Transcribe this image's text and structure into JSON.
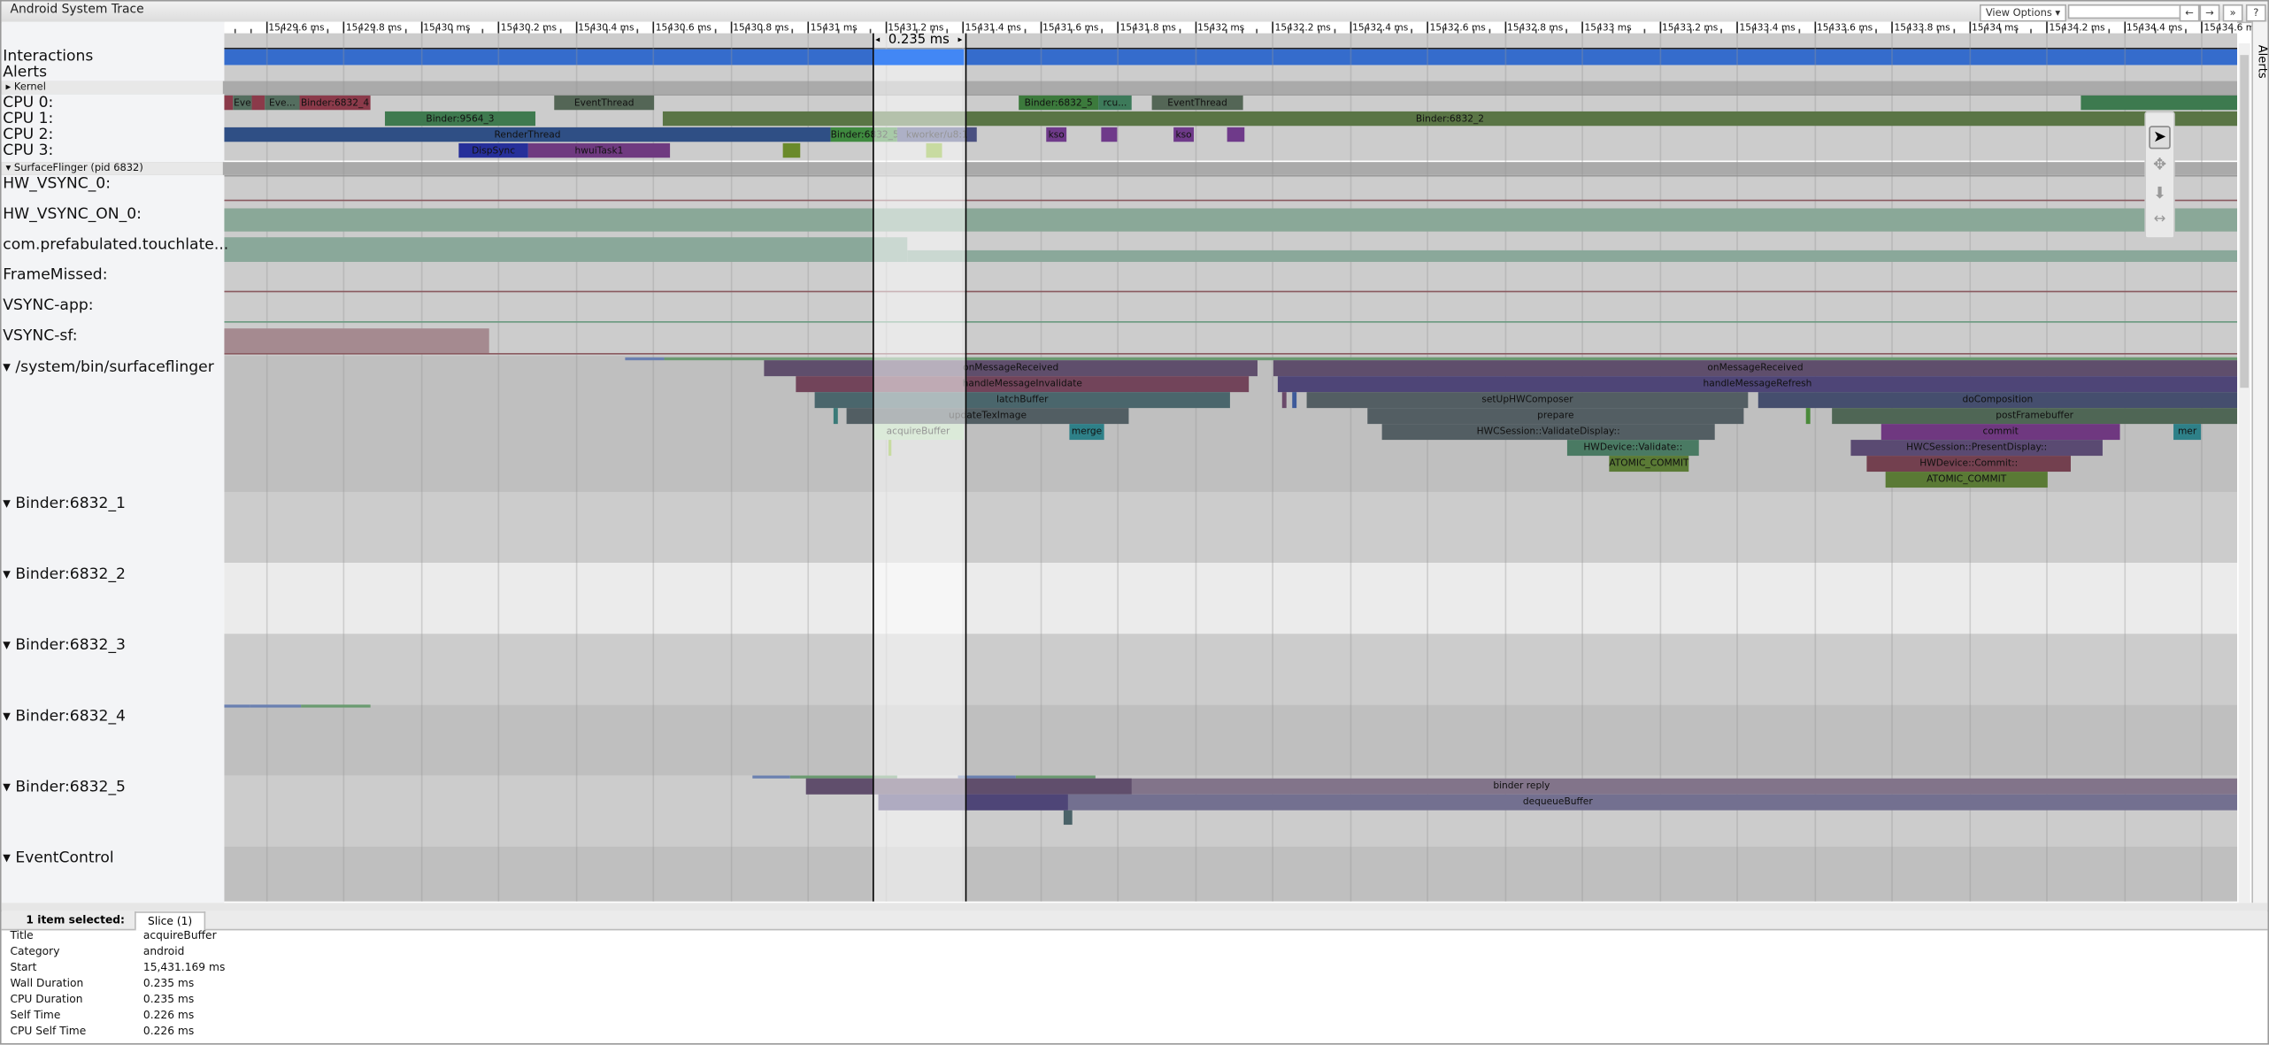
{
  "window": {
    "title": "Android System Trace"
  },
  "toolbar": {
    "view_options": "View Options ▾",
    "search_placeholder": "",
    "prev": "←",
    "next": "→",
    "more": "»",
    "help": "?"
  },
  "side_tab": "Alerts",
  "ruler": {
    "ticks": [
      "ms",
      "15429.6 ms",
      "15429.8 ms",
      "15430 ms",
      "15430.2 ms",
      "15430.4 ms",
      "15430.6 ms",
      "15430.8 ms",
      "15431 ms",
      "15431.2 ms",
      "15431.4 ms",
      "15431.6 ms",
      "15431.8 ms",
      "15432 ms",
      "15432.2 ms",
      "15432.4 ms",
      "15432.6 ms",
      "15432.8 ms",
      "15433 ms",
      "15433.2 ms",
      "15433.4 ms",
      "15433.6 ms",
      "15433.8 ms",
      "15434 ms",
      "15434.2 ms",
      "15434.4 ms",
      "15434.6 ms"
    ],
    "selection_duration": "0.235 ms"
  },
  "tracks": {
    "interactions": "Interactions",
    "alerts": "Alerts",
    "kernel": "▸ Kernel",
    "cpu": [
      "CPU 0:",
      "CPU 1:",
      "CPU 2:",
      "CPU 3:"
    ],
    "surfaceflinger_group": "▾ SurfaceFlinger (pid 6832)",
    "counters": [
      "HW_VSYNC_0:",
      "HW_VSYNC_ON_0:",
      "com.prefabulated.touchlate...",
      "FrameMissed:",
      "VSYNC-app:",
      "VSYNC-sf:"
    ],
    "threads": [
      "▾  /system/bin/surfaceflinger",
      "▾  Binder:6832_1",
      "▾  Binder:6832_2",
      "▾  Binder:6832_3",
      "▾  Binder:6832_4",
      "▾  Binder:6832_5",
      "▾  EventControl"
    ]
  },
  "cpu_slices": {
    "eve": "Eve",
    "eve2": "Eve...",
    "binder_6832_4": "Binder:6832_4",
    "eventthread": "EventThread",
    "binder_6832_5": "Binder:6832_5",
    "rcu": "rcu...",
    "binder_9564_3": "Binder:9564_3",
    "binder_6832_2": "Binder:6832_2",
    "renderthread": "RenderThread",
    "kworker": "kworker/u8:1",
    "kso": "kso",
    "dispsync": "DispSync",
    "hwuitask1": "hwuiTask1"
  },
  "sf_slices": {
    "onMessageReceived": "onMessageReceived",
    "handleMessageInvalidate": "handleMessageInvalidate",
    "handleMessageRefresh": "handleMessageRefresh",
    "latchBuffer": "latchBuffer",
    "setUpHWComposer": "setUpHWComposer",
    "doComposition": "doComposition",
    "updateTexImage": "updateTexImage",
    "prepare": "prepare",
    "postFramebuffer": "postFramebuffer",
    "acquireBuffer": "acquireBuffer",
    "merge": "merge",
    "validateDisplay": "HWCSession::ValidateDisplay::",
    "commit": "commit",
    "mer": "mer",
    "hwdeviceValidate": "HWDevice::Validate::",
    "presentDisplay": "HWCSession::PresentDisplay::",
    "atomicCommit": "ATOMIC_COMMIT",
    "hwdeviceCommit": "HWDevice::Commit::",
    "binderReply": "binder reply",
    "dequeueBuffer": "dequeueBuffer"
  },
  "colors": {
    "interactions": "#356ccc",
    "selection_interactions": "#4287f5",
    "selected_slice": "#b0d0ac"
  },
  "details": {
    "selected_label": "1 item selected:",
    "tab": "Slice (1)",
    "rows": [
      {
        "key": "Title",
        "value": "acquireBuffer"
      },
      {
        "key": "Category",
        "value": "android"
      },
      {
        "key": "Start",
        "value": "15,431.169 ms"
      },
      {
        "key": "Wall Duration",
        "value": "0.235 ms"
      },
      {
        "key": "CPU Duration",
        "value": "0.235 ms"
      },
      {
        "key": "Self Time",
        "value": "0.226 ms"
      },
      {
        "key": "CPU Self Time",
        "value": "0.226 ms"
      }
    ]
  }
}
